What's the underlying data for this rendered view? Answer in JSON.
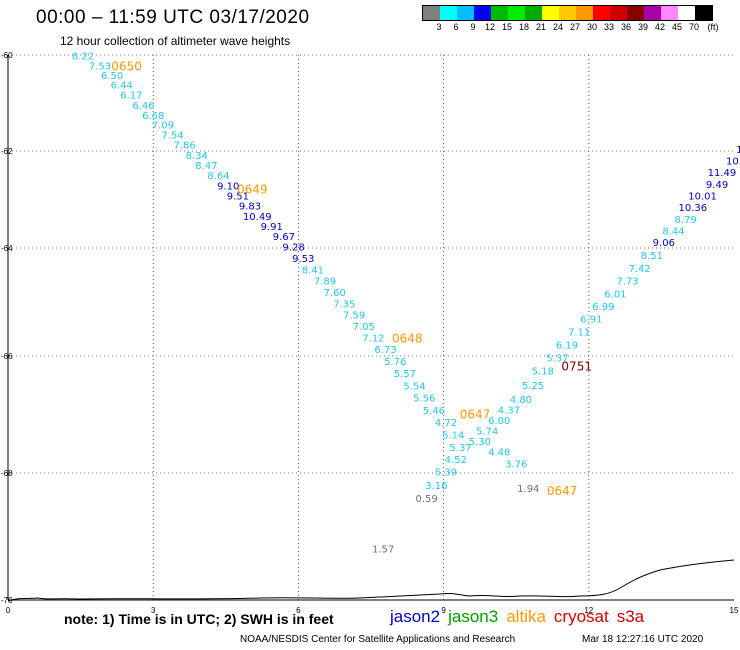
{
  "header": {
    "title": "00:00 – 11:59 UTC 03/17/2020",
    "subtitle": "12 hour collection of altimeter wave heights"
  },
  "legend": {
    "colors": [
      "#808080",
      "#00ffff",
      "#00bfff",
      "#0000ff",
      "#00bb00",
      "#00ee00",
      "#00aa00",
      "#ffff00",
      "#ffcc00",
      "#ff9900",
      "#ff0000",
      "#cc0000",
      "#880000",
      "#aa00aa",
      "#ff88ff",
      "#ffffff",
      "#000000"
    ],
    "labels": [
      "3",
      "6",
      "9",
      "12",
      "15",
      "18",
      "21",
      "24",
      "27",
      "30",
      "33",
      "36",
      "39",
      "42",
      "45",
      "70",
      "(ft)"
    ]
  },
  "map": {
    "lat_ticks": [
      {
        "label": "-60",
        "lat": -60
      },
      {
        "label": "-62",
        "lat": -62
      },
      {
        "label": "-64",
        "lat": -64
      },
      {
        "label": "-66",
        "lat": -66
      },
      {
        "label": "-68",
        "lat": -68
      },
      {
        "label": "-70",
        "lat": -70
      }
    ],
    "lon_ticks": [
      {
        "label": "0",
        "lon": 0
      },
      {
        "label": "3",
        "lon": 3
      },
      {
        "label": "6",
        "lon": 6
      },
      {
        "label": "9",
        "lon": 9
      },
      {
        "label": "12",
        "lon": 12
      },
      {
        "label": "15",
        "lon": 15
      }
    ],
    "colors": {
      "cyan": "#22c8e8",
      "blue": "#0000c8",
      "orange": "#ff9a00",
      "grey": "#707070",
      "maroon": "#7a0000"
    }
  },
  "observations": [
    {
      "v": "8.22",
      "lon": 1.55,
      "lat": -60.09,
      "c": "cyan"
    },
    {
      "v": "7.53",
      "lon": 1.9,
      "lat": -60.3,
      "c": "cyan"
    },
    {
      "v": "6.50",
      "lon": 2.15,
      "lat": -60.5,
      "c": "cyan"
    },
    {
      "v": "6.44",
      "lon": 2.35,
      "lat": -60.7,
      "c": "cyan"
    },
    {
      "v": "6.17",
      "lon": 2.55,
      "lat": -60.91,
      "c": "cyan"
    },
    {
      "v": "6.46",
      "lon": 2.8,
      "lat": -61.12,
      "c": "cyan"
    },
    {
      "v": "6.68",
      "lon": 3.0,
      "lat": -61.33,
      "c": "cyan"
    },
    {
      "v": "7.09",
      "lon": 3.2,
      "lat": -61.53,
      "c": "cyan"
    },
    {
      "v": "7.54",
      "lon": 3.4,
      "lat": -61.74,
      "c": "cyan"
    },
    {
      "v": "7.86",
      "lon": 3.65,
      "lat": -61.95,
      "c": "cyan"
    },
    {
      "v": "8.34",
      "lon": 3.9,
      "lat": -62.16,
      "c": "cyan"
    },
    {
      "v": "8.47",
      "lon": 4.1,
      "lat": -62.37,
      "c": "cyan"
    },
    {
      "v": "8.64",
      "lon": 4.35,
      "lat": -62.58,
      "c": "cyan"
    },
    {
      "v": "9.10",
      "lon": 4.55,
      "lat": -62.79,
      "c": "blue"
    },
    {
      "v": "9.51",
      "lon": 4.75,
      "lat": -63.0,
      "c": "blue"
    },
    {
      "v": "9.83",
      "lon": 5.0,
      "lat": -63.21,
      "c": "blue"
    },
    {
      "v": "10.49",
      "lon": 5.15,
      "lat": -63.42,
      "c": "blue"
    },
    {
      "v": "9.91",
      "lon": 5.45,
      "lat": -63.63,
      "c": "blue"
    },
    {
      "v": "9.67",
      "lon": 5.7,
      "lat": -63.84,
      "c": "blue"
    },
    {
      "v": "9.28",
      "lon": 5.9,
      "lat": -64.05,
      "c": "blue"
    },
    {
      "v": "9.53",
      "lon": 6.1,
      "lat": -64.26,
      "c": "blue"
    },
    {
      "v": "8.41",
      "lon": 6.3,
      "lat": -64.47,
      "c": "cyan"
    },
    {
      "v": "7.89",
      "lon": 6.55,
      "lat": -64.68,
      "c": "cyan"
    },
    {
      "v": "7.60",
      "lon": 6.75,
      "lat": -64.89,
      "c": "cyan"
    },
    {
      "v": "7.35",
      "lon": 6.95,
      "lat": -65.1,
      "c": "cyan"
    },
    {
      "v": "7.59",
      "lon": 7.15,
      "lat": -65.31,
      "c": "cyan"
    },
    {
      "v": "7.05",
      "lon": 7.35,
      "lat": -65.52,
      "c": "cyan"
    },
    {
      "v": "7.12",
      "lon": 7.55,
      "lat": -65.73,
      "c": "cyan"
    },
    {
      "v": "6.73",
      "lon": 7.8,
      "lat": -65.94,
      "c": "cyan"
    },
    {
      "v": "5.76",
      "lon": 8.0,
      "lat": -66.15,
      "c": "cyan"
    },
    {
      "v": "5.57",
      "lon": 8.2,
      "lat": -66.36,
      "c": "cyan"
    },
    {
      "v": "5.54",
      "lon": 8.4,
      "lat": -66.57,
      "c": "cyan"
    },
    {
      "v": "5.56",
      "lon": 8.6,
      "lat": -66.78,
      "c": "cyan"
    },
    {
      "v": "5.46",
      "lon": 8.8,
      "lat": -66.99,
      "c": "cyan"
    },
    {
      "v": "4.72",
      "lon": 9.05,
      "lat": -67.2,
      "c": "cyan"
    },
    {
      "v": "5.14",
      "lon": 9.2,
      "lat": -67.41,
      "c": "cyan"
    },
    {
      "v": "5.37",
      "lon": 9.35,
      "lat": -67.62,
      "c": "cyan"
    },
    {
      "v": "4.52",
      "lon": 9.25,
      "lat": -67.83,
      "c": "cyan"
    },
    {
      "v": "5.39",
      "lon": 9.05,
      "lat": -68.04,
      "c": "cyan"
    },
    {
      "v": "3.16",
      "lon": 8.85,
      "lat": -68.25,
      "c": "cyan"
    },
    {
      "v": "0.59",
      "lon": 8.65,
      "lat": -68.46,
      "c": "grey"
    },
    {
      "v": "1.57",
      "lon": 7.75,
      "lat": -69.25,
      "c": "grey"
    },
    {
      "v": "3.76",
      "lon": 10.5,
      "lat": -67.91,
      "c": "cyan"
    },
    {
      "v": "4.48",
      "lon": 10.15,
      "lat": -67.7,
      "c": "cyan"
    },
    {
      "v": "5.30",
      "lon": 9.75,
      "lat": -67.52,
      "c": "cyan"
    },
    {
      "v": "5.74",
      "lon": 9.9,
      "lat": -67.34,
      "c": "cyan"
    },
    {
      "v": "6.00",
      "lon": 10.15,
      "lat": -67.16,
      "c": "cyan"
    },
    {
      "v": "4.37",
      "lon": 10.35,
      "lat": -66.98,
      "c": "cyan"
    },
    {
      "v": "4.80",
      "lon": 10.6,
      "lat": -66.8,
      "c": "cyan"
    },
    {
      "v": "5.25",
      "lon": 10.85,
      "lat": -66.56,
      "c": "cyan"
    },
    {
      "v": "5.18",
      "lon": 11.05,
      "lat": -66.32,
      "c": "cyan"
    },
    {
      "v": "5.37",
      "lon": 11.35,
      "lat": -66.09,
      "c": "cyan"
    },
    {
      "v": "6.19",
      "lon": 11.55,
      "lat": -65.86,
      "c": "cyan"
    },
    {
      "v": "7.11",
      "lon": 11.8,
      "lat": -65.62,
      "c": "cyan"
    },
    {
      "v": "6.91",
      "lon": 12.05,
      "lat": -65.38,
      "c": "cyan"
    },
    {
      "v": "6.99",
      "lon": 12.3,
      "lat": -65.15,
      "c": "cyan"
    },
    {
      "v": "6.01",
      "lon": 12.55,
      "lat": -64.92,
      "c": "cyan"
    },
    {
      "v": "7.73",
      "lon": 12.8,
      "lat": -64.68,
      "c": "cyan"
    },
    {
      "v": "7.42",
      "lon": 13.05,
      "lat": -64.44,
      "c": "cyan"
    },
    {
      "v": "8.51",
      "lon": 13.3,
      "lat": -64.2,
      "c": "cyan"
    },
    {
      "v": "9.06",
      "lon": 13.55,
      "lat": -63.96,
      "c": "blue"
    },
    {
      "v": "8.44",
      "lon": 13.75,
      "lat": -63.72,
      "c": "cyan"
    },
    {
      "v": "8.79",
      "lon": 14.0,
      "lat": -63.48,
      "c": "cyan"
    },
    {
      "v": "10.36",
      "lon": 14.15,
      "lat": -63.24,
      "c": "blue"
    },
    {
      "v": "10.01",
      "lon": 14.35,
      "lat": -63.0,
      "c": "blue"
    },
    {
      "v": "9.49",
      "lon": 14.65,
      "lat": -62.76,
      "c": "blue"
    },
    {
      "v": "11.49",
      "lon": 14.75,
      "lat": -62.52,
      "c": "blue"
    },
    {
      "v": "10.",
      "lon": 15.0,
      "lat": -62.28,
      "c": "blue"
    },
    {
      "v": "1(",
      "lon": 15.15,
      "lat": -62.04,
      "c": "blue"
    },
    {
      "v": "1.94",
      "lon": 10.75,
      "lat": -68.3,
      "c": "grey"
    }
  ],
  "time_labels": [
    {
      "v": "0650",
      "lon": 2.45,
      "lat": -60.32,
      "c": "orange"
    },
    {
      "v": "0649",
      "lon": 5.05,
      "lat": -62.88,
      "c": "orange"
    },
    {
      "v": "0648",
      "lon": 8.25,
      "lat": -65.75,
      "c": "orange"
    },
    {
      "v": "0647",
      "lon": 9.65,
      "lat": -67.07,
      "c": "orange"
    },
    {
      "v": "0751",
      "lon": 11.75,
      "lat": -66.25,
      "c": "maroon"
    },
    {
      "v": "0647",
      "lon": 11.45,
      "lat": -68.35,
      "c": "orange"
    }
  ],
  "note": "note: 1) Time is in UTC; 2) SWH is in feet",
  "satellites": [
    {
      "name": "jason2",
      "color": "#0000cc"
    },
    {
      "name": "jason3",
      "color": "#00a000"
    },
    {
      "name": "altika",
      "color": "#ff9900"
    },
    {
      "name": "cryosat",
      "color": "#dd0000"
    },
    {
      "name": "s3a",
      "color": "#cc0000"
    }
  ],
  "footer": {
    "credit": "NOAA/NESDIS Center for Satellite Applications and Research",
    "timestamp": "Mar 18 12:27:16 UTC 2020"
  }
}
